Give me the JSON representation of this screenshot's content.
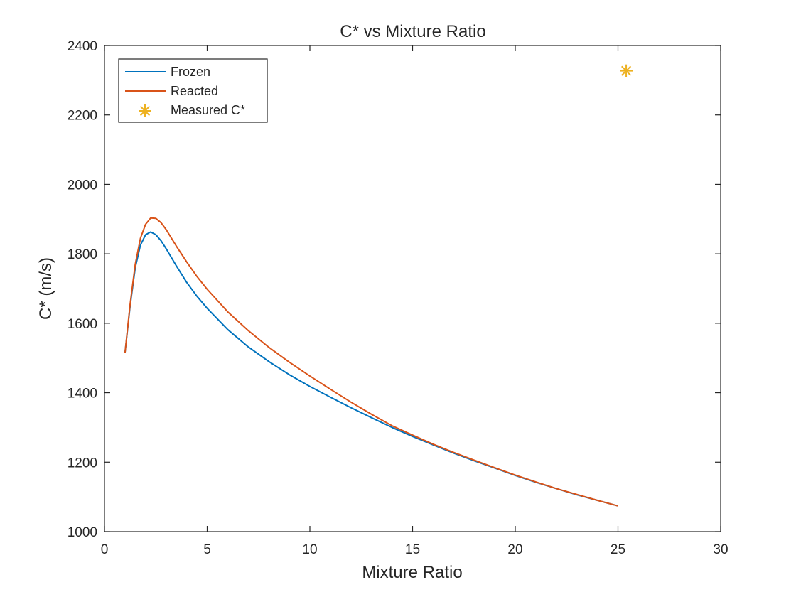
{
  "chart_data": {
    "type": "line",
    "title": "C* vs Mixture Ratio",
    "xlabel": "Mixture Ratio",
    "ylabel": "C* (m/s)",
    "xlim": [
      0,
      30
    ],
    "ylim": [
      1000,
      2400
    ],
    "xticks": [
      "0",
      "5",
      "10",
      "15",
      "20",
      "25",
      "30"
    ],
    "yticks": [
      "1000",
      "1200",
      "1400",
      "1600",
      "1800",
      "2000",
      "2200",
      "2400"
    ],
    "grid": false,
    "legend_position": "top-left",
    "series": [
      {
        "name": "Frozen",
        "color": "#0072BD",
        "x": [
          1.0,
          1.25,
          1.5,
          1.75,
          2.0,
          2.25,
          2.5,
          2.75,
          3.0,
          3.5,
          4.0,
          4.5,
          5.0,
          6.0,
          7.0,
          8.0,
          9.0,
          10.0,
          11.0,
          12.0,
          13.0,
          14.0,
          15.0,
          16.0,
          17.0,
          18.0,
          19.0,
          20.0,
          21.0,
          22.0,
          23.0,
          24.0,
          25.0
        ],
        "y": [
          1515,
          1650,
          1760,
          1825,
          1855,
          1863,
          1855,
          1838,
          1815,
          1765,
          1718,
          1678,
          1643,
          1582,
          1532,
          1490,
          1452,
          1418,
          1387,
          1357,
          1328,
          1300,
          1274,
          1250,
          1226,
          1204,
          1183,
          1162,
          1142,
          1124,
          1106,
          1090,
          1074
        ]
      },
      {
        "name": "Reacted",
        "color": "#D95319",
        "x": [
          1.0,
          1.25,
          1.5,
          1.75,
          2.0,
          2.25,
          2.5,
          2.75,
          3.0,
          3.5,
          4.0,
          4.5,
          5.0,
          6.0,
          7.0,
          8.0,
          9.0,
          10.0,
          11.0,
          12.0,
          13.0,
          14.0,
          15.0,
          16.0,
          17.0,
          18.0,
          19.0,
          20.0,
          21.0,
          22.0,
          23.0,
          24.0,
          25.0
        ],
        "y": [
          1515,
          1655,
          1770,
          1845,
          1885,
          1903,
          1902,
          1890,
          1870,
          1822,
          1777,
          1735,
          1698,
          1633,
          1579,
          1531,
          1488,
          1448,
          1410,
          1373,
          1338,
          1305,
          1278,
          1252,
          1228,
          1206,
          1184,
          1163,
          1143,
          1124,
          1107,
          1090,
          1074
        ]
      },
      {
        "name": "Measured C*",
        "color": "#EDB120",
        "marker": "asterisk",
        "x": [
          25.4
        ],
        "y": [
          2327
        ]
      }
    ]
  }
}
